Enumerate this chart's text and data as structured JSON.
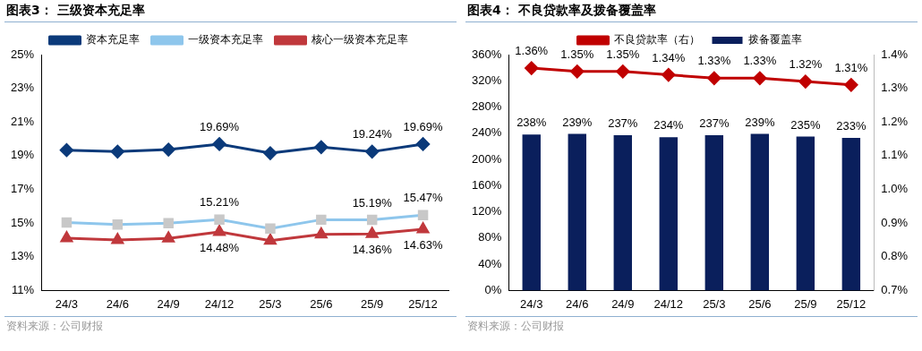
{
  "chart_data": [
    {
      "type": "line",
      "title": "图表3：  三级资本充足率",
      "categories": [
        "24/3",
        "24/6",
        "24/9",
        "24/12",
        "25/3",
        "25/6",
        "25/9",
        "25/12"
      ],
      "series": [
        {
          "name": "资本充足率",
          "color": "#0b3a7a",
          "marker": "diamond",
          "values": [
            19.33,
            19.24,
            19.36,
            19.69,
            19.15,
            19.51,
            19.24,
            19.69
          ],
          "value_labels": [
            null,
            null,
            null,
            "19.69%",
            null,
            null,
            "19.24%",
            "19.69%"
          ]
        },
        {
          "name": "一级资本充足率",
          "color": "#8ec6ec",
          "marker": "square",
          "values": [
            15.04,
            14.91,
            15.0,
            15.21,
            14.68,
            15.2,
            15.19,
            15.47
          ],
          "value_labels": [
            null,
            null,
            null,
            "15.21%",
            null,
            null,
            "15.19%",
            "15.47%"
          ]
        },
        {
          "name": "核心一级资本充足率",
          "color": "#c0383c",
          "marker": "triangle",
          "values": [
            14.11,
            14.0,
            14.09,
            14.48,
            13.96,
            14.33,
            14.36,
            14.63
          ],
          "value_labels": [
            null,
            null,
            null,
            "14.48%",
            null,
            null,
            "14.36%",
            "14.63%"
          ]
        }
      ],
      "ylim": [
        11,
        25
      ],
      "yticks": [
        {
          "value": 11,
          "label": "11%"
        },
        {
          "value": 13,
          "label": "13%"
        },
        {
          "value": 15,
          "label": "15%"
        },
        {
          "value": 17,
          "label": "17%"
        },
        {
          "value": 19,
          "label": "19%"
        },
        {
          "value": 21,
          "label": "21%"
        },
        {
          "value": 23,
          "label": "23%"
        },
        {
          "value": 25,
          "label": "25%"
        }
      ],
      "grid": false,
      "legend": "top",
      "annotations": [
        "资料来源：公司财报"
      ]
    },
    {
      "type": "bar",
      "title": "图表4：  不良贷款率及拨备覆盖率",
      "categories": [
        "24/3",
        "24/6",
        "24/9",
        "24/12",
        "25/3",
        "25/6",
        "25/9",
        "25/12"
      ],
      "series": [
        {
          "name": "拨备覆盖率",
          "color": "#0a1f5c",
          "values": [
            238,
            239,
            237,
            234,
            237,
            239,
            235,
            233
          ],
          "value_labels": [
            "238%",
            "239%",
            "237%",
            "234%",
            "237%",
            "239%",
            "235%",
            "233%"
          ]
        },
        {
          "name": "不良贷款率（右）",
          "type": "line",
          "axis": "y2",
          "marker": "diamond",
          "color": "#c00000",
          "values": [
            1.36,
            1.35,
            1.35,
            1.34,
            1.33,
            1.33,
            1.32,
            1.31
          ],
          "value_labels": [
            "1.36%",
            "1.35%",
            "1.35%",
            "1.34%",
            "1.33%",
            "1.33%",
            "1.32%",
            "1.31%"
          ]
        }
      ],
      "ylim": [
        0,
        360
      ],
      "yticks": [
        {
          "value": 0,
          "label": "0%"
        },
        {
          "value": 40,
          "label": "40%"
        },
        {
          "value": 80,
          "label": "80%"
        },
        {
          "value": 120,
          "label": "120%"
        },
        {
          "value": 160,
          "label": "160%"
        },
        {
          "value": 200,
          "label": "200%"
        },
        {
          "value": 240,
          "label": "240%"
        },
        {
          "value": 280,
          "label": "280%"
        },
        {
          "value": 320,
          "label": "320%"
        },
        {
          "value": 360,
          "label": "360%"
        }
      ],
      "y2lim": [
        0.7,
        1.4
      ],
      "y2ticks": [
        {
          "value": 0.7,
          "label": "0.7%"
        },
        {
          "value": 0.8,
          "label": "0.8%"
        },
        {
          "value": 0.9,
          "label": "0.9%"
        },
        {
          "value": 1.0,
          "label": "1.0%"
        },
        {
          "value": 1.1,
          "label": "1.1%"
        },
        {
          "value": 1.2,
          "label": "1.2%"
        },
        {
          "value": 1.3,
          "label": "1.3%"
        },
        {
          "value": 1.4,
          "label": "1.4%"
        }
      ],
      "grid": false,
      "legend": "top",
      "annotations": [
        "资料来源：公司财报"
      ]
    }
  ]
}
